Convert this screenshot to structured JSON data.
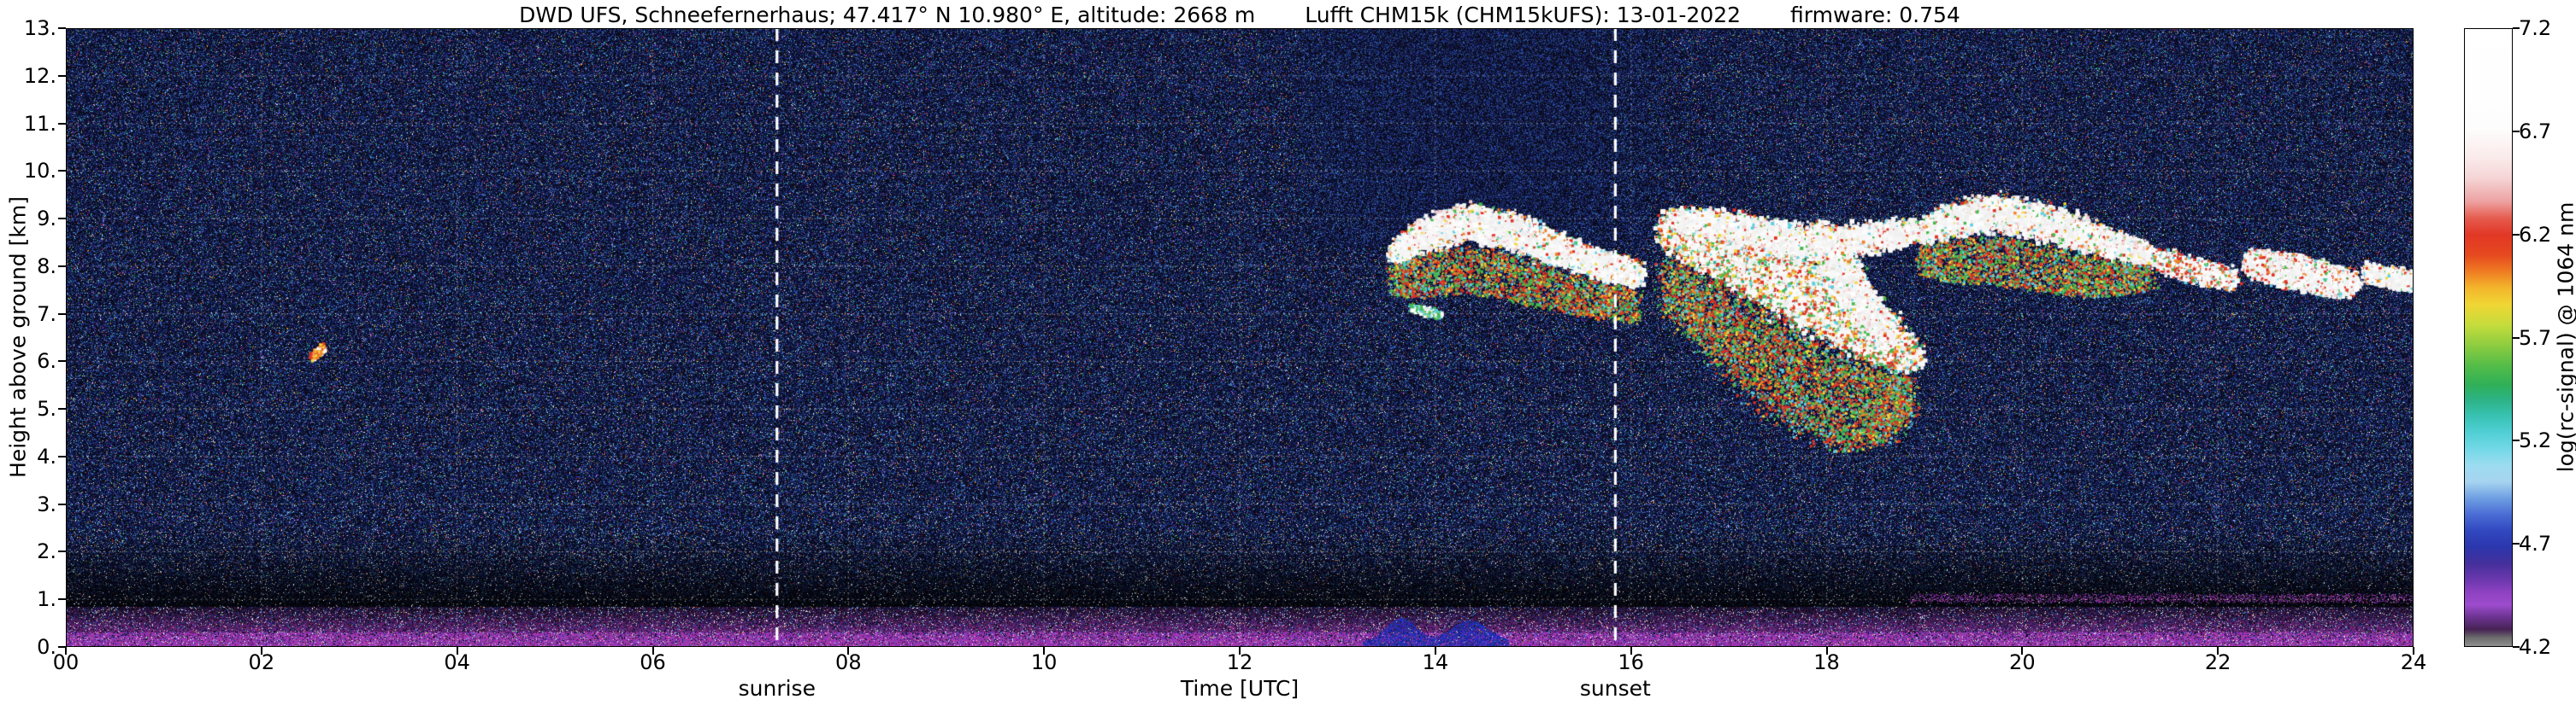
{
  "title": {
    "station": "DWD UFS, Schneefernerhaus; 47.417° N 10.980° E, altitude: 2668 m",
    "instrument": "Lufft CHM15k (CHM15kUFS): 13-01-2022",
    "firmware": "firmware: 0.754"
  },
  "chart_data": {
    "type": "heatmap",
    "title": "DWD UFS, Schneefernerhaus; 47.417° N 10.980° E, altitude: 2668 m   Lufft CHM15k (CHM15kUFS): 13-01-2022   firmware: 0.754",
    "xlabel": "Time [UTC]",
    "ylabel": "Height above ground [km]",
    "colorbar_label": "log(rc-signal) @ 1064 nm",
    "xlim": [
      0,
      24
    ],
    "ylim": [
      0,
      13
    ],
    "value_range": [
      4.2,
      7.2
    ],
    "grid": "dotted, every 2 h and every 1 km",
    "x_ticks": [
      {
        "label": "00",
        "hour": 0
      },
      {
        "label": "02",
        "hour": 2
      },
      {
        "label": "04",
        "hour": 4
      },
      {
        "label": "06",
        "hour": 6
      },
      {
        "label": "08",
        "hour": 8
      },
      {
        "label": "10",
        "hour": 10
      },
      {
        "label": "12",
        "hour": 12
      },
      {
        "label": "14",
        "hour": 14
      },
      {
        "label": "16",
        "hour": 16
      },
      {
        "label": "18",
        "hour": 18
      },
      {
        "label": "20",
        "hour": 20
      },
      {
        "label": "22",
        "hour": 22
      },
      {
        "label": "24",
        "hour": 24
      }
    ],
    "y_ticks": [
      {
        "label": "0.",
        "km": 0
      },
      {
        "label": "1.",
        "km": 1
      },
      {
        "label": "2.",
        "km": 2
      },
      {
        "label": "3.",
        "km": 3
      },
      {
        "label": "4.",
        "km": 4
      },
      {
        "label": "5.",
        "km": 5
      },
      {
        "label": "6.",
        "km": 6
      },
      {
        "label": "7.",
        "km": 7
      },
      {
        "label": "8.",
        "km": 8
      },
      {
        "label": "9.",
        "km": 9
      },
      {
        "label": "10.",
        "km": 10
      },
      {
        "label": "11.",
        "km": 11
      },
      {
        "label": "12.",
        "km": 12
      },
      {
        "label": "13.",
        "km": 13
      }
    ],
    "colorbar_ticks": [
      {
        "label": "7.2",
        "value": 7.2
      },
      {
        "label": "6.7",
        "value": 6.7
      },
      {
        "label": "6.2",
        "value": 6.2
      },
      {
        "label": "5.7",
        "value": 5.7
      },
      {
        "label": "5.2",
        "value": 5.2
      },
      {
        "label": "4.7",
        "value": 4.7
      },
      {
        "label": "4.2",
        "value": 4.2
      }
    ],
    "annotations": [
      {
        "label": "sunrise",
        "time_utc": 7.27
      },
      {
        "label": "sunset",
        "time_utc": 15.84
      }
    ],
    "colormap_stops": [
      {
        "value": 7.2,
        "color": "#ffffff"
      },
      {
        "value": 6.72,
        "color": "#fefdfd"
      },
      {
        "value": 6.58,
        "color": "#faeceb"
      },
      {
        "value": 6.47,
        "color": "#f5d3d4"
      },
      {
        "value": 6.36,
        "color": "#eda0a0"
      },
      {
        "value": 6.28,
        "color": "#e55b4e"
      },
      {
        "value": 6.2,
        "color": "#e23726"
      },
      {
        "value": 6.1,
        "color": "#e6491f"
      },
      {
        "value": 6.02,
        "color": "#ef7d22"
      },
      {
        "value": 5.94,
        "color": "#f3b62c"
      },
      {
        "value": 5.86,
        "color": "#f0d634"
      },
      {
        "value": 5.76,
        "color": "#c4dc3c"
      },
      {
        "value": 5.66,
        "color": "#8ccc40"
      },
      {
        "value": 5.56,
        "color": "#52bc48"
      },
      {
        "value": 5.47,
        "color": "#30b058"
      },
      {
        "value": 5.4,
        "color": "#2cb284"
      },
      {
        "value": 5.32,
        "color": "#38c2b2"
      },
      {
        "value": 5.24,
        "color": "#50cfd4"
      },
      {
        "value": 5.16,
        "color": "#72d8e6"
      },
      {
        "value": 5.08,
        "color": "#9cdcf0"
      },
      {
        "value": 5.0,
        "color": "#a6d4f0"
      },
      {
        "value": 4.92,
        "color": "#6f9fe2"
      },
      {
        "value": 4.84,
        "color": "#4a6cd4"
      },
      {
        "value": 4.76,
        "color": "#3148c0"
      },
      {
        "value": 4.68,
        "color": "#2c36ac"
      },
      {
        "value": 4.6,
        "color": "#45309c"
      },
      {
        "value": 4.52,
        "color": "#6d38ae"
      },
      {
        "value": 4.46,
        "color": "#8f42c2"
      },
      {
        "value": 4.4,
        "color": "#9c4ccc"
      },
      {
        "value": 4.34,
        "color": "#6b3390"
      },
      {
        "value": 4.28,
        "color": "#472354"
      },
      {
        "value": 4.24,
        "color": "#6e6e6e"
      },
      {
        "value": 4.2,
        "color": "#909090"
      }
    ],
    "cloud_palette": {
      "white": "#ffffff",
      "pink": "#f3cdd1",
      "red": "#df3125",
      "orange": "#ef8126",
      "yellow": "#f1d737",
      "green": "#46b94c",
      "teal": "#2fb792",
      "cyan": "#5bcfe2",
      "magenta": "#b052c8"
    },
    "features": {
      "description": "Ceilometer attenuated-backscatter quicklook: strong magenta near-surface aerosol signal below ~0.85 km, dark attenuation band 0.85-2.5 km, speckle noise aloft, enhanced noise above 8.4 km around 13-16 UTC, mid-level cloud layers between 6 and 9.5 km from ~13:30 UTC to 24 UTC, and a small isolated cloud echo near 02:30 UTC at 6.2 km.",
      "noise_enhanced_region": {
        "t_range": [
          12.6,
          16.4
        ],
        "above_km": 8.4
      },
      "surface_layer": {
        "top_km": 0.85,
        "bright_line_km": [
          0.05,
          0.32
        ]
      },
      "attenuation_dark_band_km": [
        0.85,
        2.5
      ],
      "boundary_layer_blue_patches": {
        "t_range": [
          13.25,
          14.75
        ],
        "peaks": [
          13.65,
          14.35
        ],
        "max_km": 0.62
      },
      "elevated_aerosol_band": {
        "t_range": [
          18.85,
          24
        ],
        "km": 1.03
      },
      "clouds": [
        {
          "id": "A",
          "style": "white",
          "fringe": true,
          "n": 9000,
          "path": [
            [
              13.55,
              8.3,
              0.3
            ],
            [
              13.85,
              8.7,
              0.45
            ],
            [
              14.3,
              8.95,
              0.5
            ],
            [
              14.75,
              8.8,
              0.5
            ],
            [
              15.15,
              8.45,
              0.45
            ],
            [
              15.55,
              8.15,
              0.4
            ],
            [
              16.05,
              7.85,
              0.35
            ]
          ]
        },
        {
          "id": "B1",
          "style": "mixed",
          "fringe": true,
          "n": 17000,
          "path": [
            [
              16.35,
              8.8,
              0.55
            ],
            [
              16.8,
              8.45,
              0.75
            ],
            [
              17.25,
              8.0,
              0.9
            ],
            [
              17.75,
              7.5,
              1.0
            ],
            [
              18.2,
              6.95,
              0.95
            ],
            [
              18.6,
              6.45,
              0.7
            ],
            [
              18.85,
              6.1,
              0.4
            ]
          ]
        },
        {
          "id": "B2",
          "style": "white",
          "fringe": false,
          "n": 6500,
          "path": [
            [
              16.45,
              9.0,
              0.35
            ],
            [
              16.95,
              8.85,
              0.45
            ],
            [
              17.5,
              8.6,
              0.5
            ],
            [
              18.05,
              8.5,
              0.5
            ],
            [
              18.55,
              8.65,
              0.4
            ],
            [
              18.9,
              8.8,
              0.3
            ]
          ]
        },
        {
          "id": "B3",
          "style": "white",
          "fringe": false,
          "n": 7000,
          "path": [
            [
              17.9,
              8.6,
              0.5
            ],
            [
              18.15,
              7.9,
              0.6
            ],
            [
              18.35,
              7.2,
              0.6
            ],
            [
              18.55,
              6.7,
              0.5
            ]
          ]
        },
        {
          "id": "C",
          "style": "white",
          "fringe": true,
          "n": 8500,
          "path": [
            [
              18.95,
              8.75,
              0.3
            ],
            [
              19.25,
              9.0,
              0.45
            ],
            [
              19.7,
              9.15,
              0.5
            ],
            [
              20.15,
              9.0,
              0.5
            ],
            [
              20.6,
              8.7,
              0.45
            ],
            [
              21.0,
              8.45,
              0.35
            ],
            [
              21.3,
              8.25,
              0.25
            ]
          ]
        },
        {
          "id": "D",
          "style": "sparse",
          "fringe": false,
          "n": 2000,
          "path": [
            [
              21.35,
              8.15,
              0.3
            ],
            [
              21.75,
              7.95,
              0.35
            ],
            [
              22.15,
              7.75,
              0.3
            ]
          ]
        },
        {
          "id": "E",
          "style": "flecked",
          "fringe": false,
          "n": 6000,
          "path": [
            [
              22.3,
              8.1,
              0.35
            ],
            [
              22.65,
              7.95,
              0.45
            ],
            [
              23.0,
              7.8,
              0.45
            ],
            [
              23.35,
              7.65,
              0.35
            ]
          ]
        },
        {
          "id": "F",
          "style": "white",
          "fringe": false,
          "n": 1600,
          "path": [
            [
              23.5,
              7.9,
              0.25
            ],
            [
              23.85,
              7.75,
              0.3
            ],
            [
              24.0,
              7.7,
              0.3
            ]
          ]
        },
        {
          "id": "G",
          "style": "spot",
          "fringe": false,
          "n": 300,
          "path": [
            [
              2.5,
              6.1,
              0.12
            ],
            [
              2.62,
              6.3,
              0.15
            ]
          ]
        },
        {
          "id": "H",
          "style": "green-bits",
          "fringe": false,
          "n": 300,
          "path": [
            [
              13.75,
              7.15,
              0.12
            ],
            [
              14.05,
              7.0,
              0.12
            ]
          ]
        }
      ]
    }
  }
}
